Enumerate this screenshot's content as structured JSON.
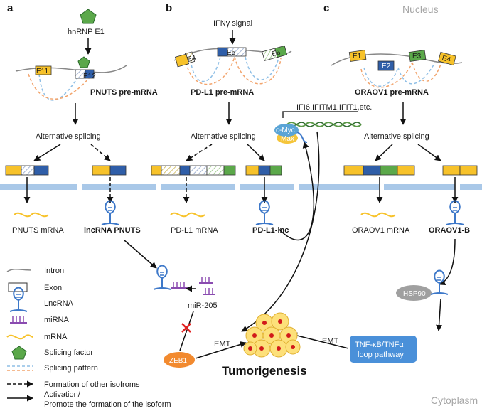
{
  "regions": {
    "nucleus": "Nucleus",
    "cytoplasm": "Cytoplasm"
  },
  "panels": {
    "a": "a",
    "b": "b",
    "c": "c"
  },
  "panel_a": {
    "factor": "hnRNP E1",
    "exon1": "E11",
    "exon2": "E12",
    "premrna": "PNUTS pre-mRNA",
    "splicing": "Alternative splicing",
    "mrna": "PNUTS mRNA",
    "lnc": "lncRNA PNUTS"
  },
  "panel_b": {
    "signal": "IFNγ signal",
    "exon4": "E4",
    "exon5": "E5",
    "exon6": "E6",
    "premrna": "PD-L1 pre-mRNA",
    "splicing": "Alternative splicing",
    "mrna": "PD-L1 mRNA",
    "lnc": "PD-L1-lnc",
    "genes": "IFI6,IFITM1,IFIT1,etc.",
    "myc": "c-Myc",
    "max": "Max"
  },
  "panel_c": {
    "exon1": "E1",
    "exon2": "E2",
    "exon3": "E3",
    "exon4": "E4",
    "premrna": "ORAOV1 pre-mRNA",
    "splicing": "Alternative splicing",
    "mrna": "ORAOV1 mRNA",
    "lnc": "ORAOV1-B",
    "hsp": "HSP90",
    "pathway_line1": "TNF-κB/TNFα",
    "pathway_line2": "loop pathway",
    "emt": "EMT"
  },
  "center": {
    "mir": "miR-205",
    "zeb": "ZEB1",
    "emt": "EMT",
    "outcome": "Tumorigenesis"
  },
  "legend": [
    "Intron",
    "Exon",
    "LncRNA",
    "miRNA",
    "mRNA",
    "Splicing factor",
    "Splicing pattern",
    "Formation of other isofroms",
    "Activation/",
    "Promote the formation of the isoform"
  ],
  "colors": {
    "yellow": "#f7c22a",
    "blue": "#2f5ea8",
    "green": "#5ba84a",
    "lnc_blue": "#3d78c9",
    "mirna": "#8a4bb0",
    "membrane": "#a9c8e8",
    "zeb": "#f28a2f",
    "cell": "#fde07a",
    "nucleus_dot": "#d11a1a",
    "pathway": "#4a90d9",
    "hsp": "#a0a0a0",
    "myc": "#5aa4d6",
    "max": "#f5c53a",
    "splice_blue": "#8fbfe6",
    "splice_orange": "#f2a36b",
    "red_x": "#e02020"
  }
}
